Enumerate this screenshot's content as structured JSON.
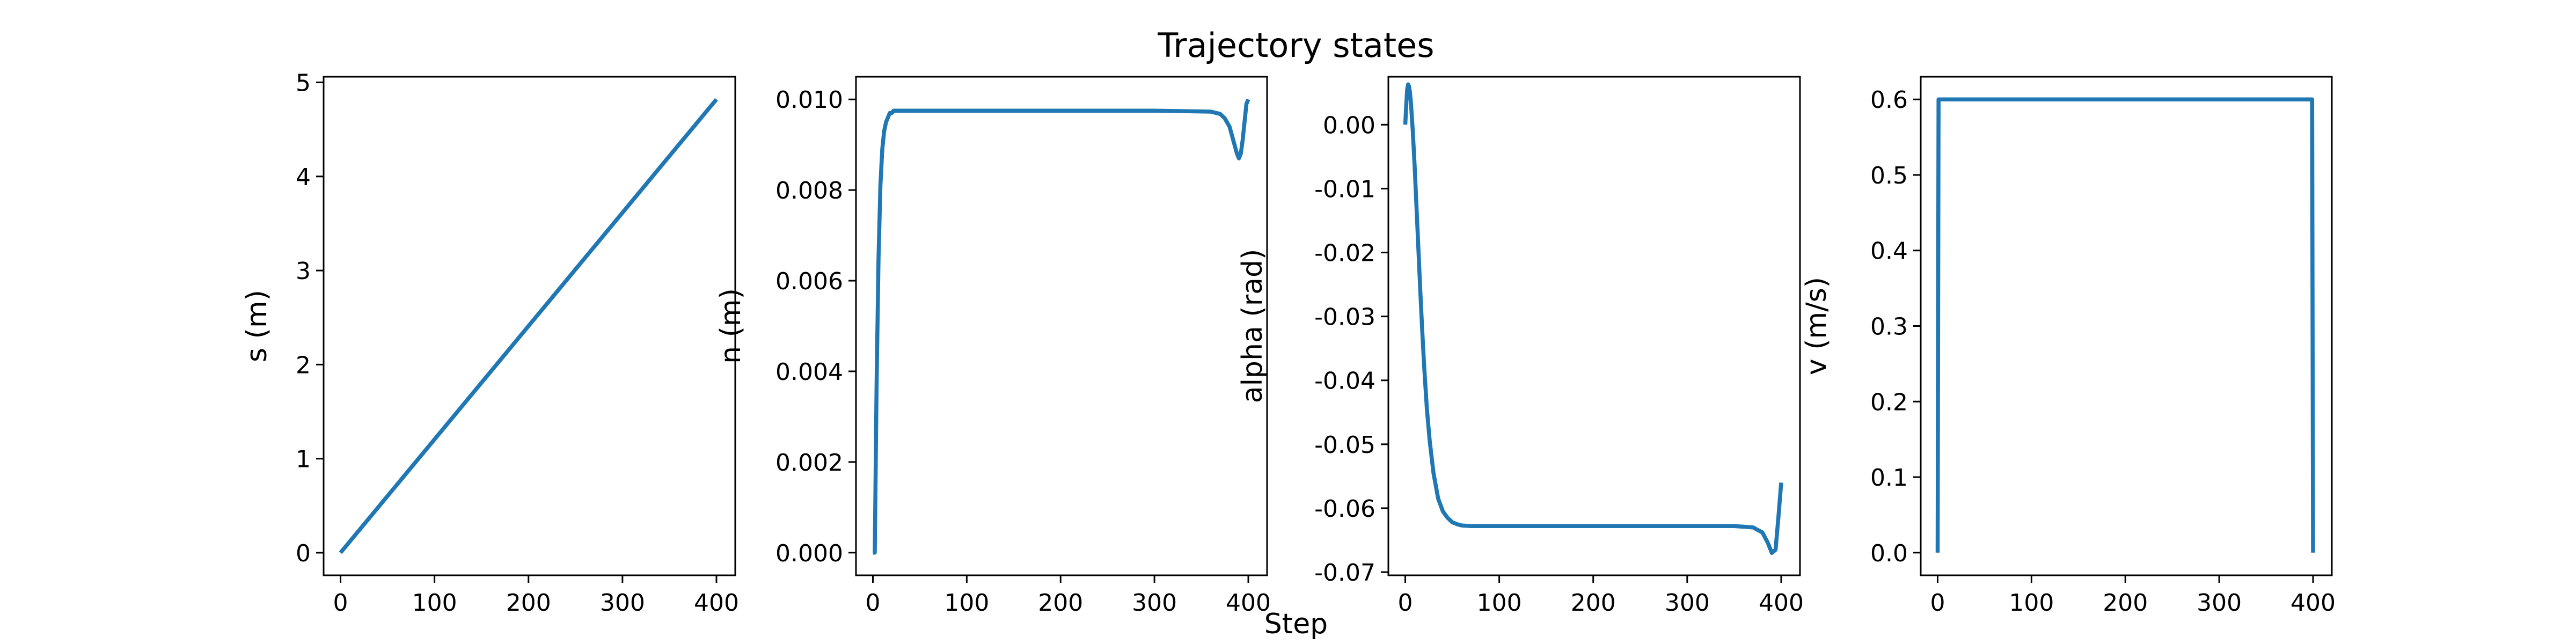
{
  "title": "Trajectory states",
  "xlabel": "Step",
  "line_color": "#1f77b4",
  "chart_data": [
    {
      "type": "line",
      "ylabel": "s (m)",
      "xlim": [
        -18,
        420
      ],
      "ylim": [
        -0.24,
        5.06
      ],
      "xticks": [
        0,
        100,
        200,
        300,
        400
      ],
      "xtick_labels": [
        "0",
        "100",
        "200",
        "300",
        "400"
      ],
      "yticks": [
        0,
        1,
        2,
        3,
        4,
        5
      ],
      "ytick_labels": [
        "0",
        "1",
        "2",
        "3",
        "4",
        "5"
      ],
      "grid": false,
      "series": [
        {
          "x": [
            0,
            400
          ],
          "y": [
            0.0,
            4.82
          ]
        }
      ]
    },
    {
      "type": "line",
      "ylabel": "n (m)",
      "xlim": [
        -18,
        420
      ],
      "ylim": [
        -0.0005,
        0.0105
      ],
      "xticks": [
        0,
        100,
        200,
        300,
        400
      ],
      "xtick_labels": [
        "0",
        "100",
        "200",
        "300",
        "400"
      ],
      "yticks": [
        0,
        0.002,
        0.004,
        0.006,
        0.008,
        0.01
      ],
      "ytick_labels": [
        "0.000",
        "0.002",
        "0.004",
        "0.006",
        "0.008",
        "0.010"
      ],
      "grid": false,
      "series": [
        {
          "x": [
            0,
            2,
            4,
            6,
            8,
            10,
            12,
            14,
            16,
            18,
            20,
            22,
            25,
            30,
            40,
            60,
            100,
            200,
            300,
            360,
            370,
            375,
            380,
            384,
            388,
            390,
            392,
            394,
            396,
            398,
            400
          ],
          "y": [
            0.0,
            0.0,
            0.0038,
            0.0065,
            0.0081,
            0.0089,
            0.0093,
            0.0095,
            0.0096,
            0.0097,
            0.0097,
            0.00975,
            0.00975,
            0.00975,
            0.00975,
            0.00975,
            0.00975,
            0.00975,
            0.00975,
            0.00973,
            0.00968,
            0.00958,
            0.0094,
            0.0091,
            0.0088,
            0.0087,
            0.0088,
            0.0091,
            0.0095,
            0.0099,
            0.01
          ]
        }
      ]
    },
    {
      "type": "line",
      "ylabel": "alpha (rad)",
      "xlim": [
        -18,
        420
      ],
      "ylim": [
        -0.0705,
        0.0075
      ],
      "xticks": [
        0,
        100,
        200,
        300,
        400
      ],
      "xtick_labels": [
        "0",
        "100",
        "200",
        "300",
        "400"
      ],
      "yticks": [
        0.0,
        -0.01,
        -0.02,
        -0.03,
        -0.04,
        -0.05,
        -0.06,
        -0.07
      ],
      "ytick_labels": [
        "0.00",
        "-0.01",
        "-0.02",
        "-0.03",
        "-0.04",
        "-0.05",
        "-0.06",
        "-0.07"
      ],
      "grid": false,
      "series": [
        {
          "x": [
            0,
            1,
            2,
            3,
            4,
            5,
            6,
            8,
            10,
            12,
            14,
            16,
            18,
            20,
            23,
            26,
            30,
            35,
            40,
            45,
            50,
            55,
            60,
            70,
            80,
            100,
            200,
            300,
            350,
            370,
            380,
            386,
            390,
            394,
            397,
            400
          ],
          "y": [
            0.0,
            0.003,
            0.0055,
            0.0063,
            0.006,
            0.005,
            0.0035,
            -0.001,
            -0.0065,
            -0.013,
            -0.0195,
            -0.026,
            -0.032,
            -0.0375,
            -0.0445,
            -0.0495,
            -0.0545,
            -0.0585,
            -0.0605,
            -0.0615,
            -0.0622,
            -0.0625,
            -0.0627,
            -0.0628,
            -0.0628,
            -0.0628,
            -0.0628,
            -0.0628,
            -0.0628,
            -0.063,
            -0.0638,
            -0.0655,
            -0.067,
            -0.0665,
            -0.0615,
            -0.056
          ]
        }
      ]
    },
    {
      "type": "line",
      "ylabel": "v (m/s)",
      "xlim": [
        -18,
        420
      ],
      "ylim": [
        -0.03,
        0.63
      ],
      "xticks": [
        0,
        100,
        200,
        300,
        400
      ],
      "xtick_labels": [
        "0",
        "100",
        "200",
        "300",
        "400"
      ],
      "yticks": [
        0.0,
        0.1,
        0.2,
        0.3,
        0.4,
        0.5,
        0.6
      ],
      "ytick_labels": [
        "0.0",
        "0.1",
        "0.2",
        "0.3",
        "0.4",
        "0.5",
        "0.6"
      ],
      "grid": false,
      "series": [
        {
          "x": [
            0,
            1,
            399,
            400
          ],
          "y": [
            0.0,
            0.6,
            0.6,
            0.0
          ]
        }
      ]
    }
  ]
}
